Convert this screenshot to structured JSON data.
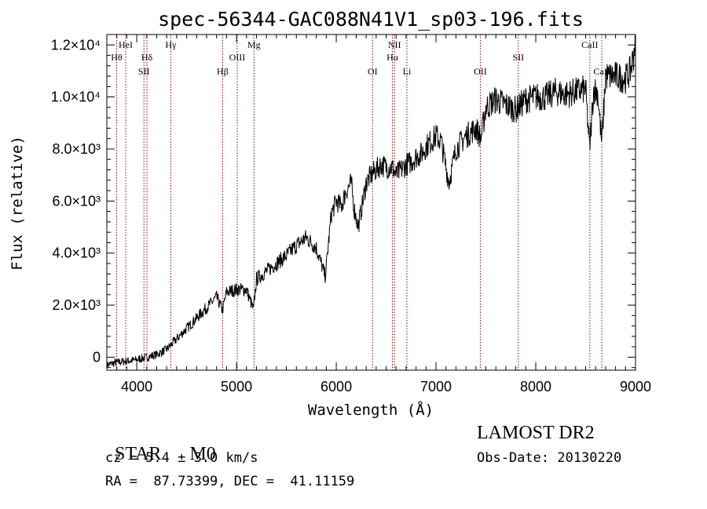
{
  "chart_data": {
    "type": "line",
    "title": "spec-56344-GAC088N41V1_sp03-196.fits",
    "xlabel": "Wavelength (Å)",
    "ylabel": "Flux (relative)",
    "xlim": [
      3700,
      9000
    ],
    "ylim": [
      -500,
      12400
    ],
    "x_ticks": [
      4000,
      5000,
      6000,
      7000,
      8000,
      9000
    ],
    "x_tick_labels": [
      "4000",
      "5000",
      "6000",
      "7000",
      "8000",
      "9000"
    ],
    "y_ticks": [
      0,
      2000,
      4000,
      6000,
      8000,
      10000,
      12000
    ],
    "y_tick_labels": [
      "0",
      "2.0×10³",
      "4.0×10³",
      "6.0×10³",
      "8.0×10³",
      "1.0×10⁴",
      "1.2×10⁴"
    ],
    "grid": false,
    "series": [
      {
        "x": [
          3700,
          3800,
          3900,
          4000,
          4100,
          4200,
          4300,
          4350,
          4400,
          4500,
          4600,
          4700,
          4800,
          4860,
          4900,
          5000,
          5100,
          5170,
          5200,
          5300,
          5400,
          5500,
          5600,
          5700,
          5800,
          5890,
          5950,
          6000,
          6050,
          6100,
          6150,
          6180,
          6220,
          6300,
          6350,
          6400,
          6450,
          6500,
          6560,
          6600,
          6650,
          6700,
          6750,
          6800,
          6850,
          6900,
          6950,
          7000,
          7050,
          7100,
          7130,
          7200,
          7300,
          7400,
          7450,
          7500,
          7600,
          7700,
          7800,
          7900,
          8000,
          8100,
          8200,
          8300,
          8400,
          8500,
          8540,
          8580,
          8620,
          8662,
          8700,
          8800,
          8900,
          8950,
          8980,
          9000
        ],
        "values": [
          -300,
          -200,
          -150,
          -100,
          0,
          100,
          300,
          500,
          700,
          1100,
          1500,
          1900,
          2300,
          1800,
          2500,
          2600,
          2600,
          1800,
          3000,
          3300,
          3600,
          3900,
          4300,
          4600,
          4200,
          3100,
          5500,
          6000,
          5800,
          6400,
          6700,
          5700,
          5000,
          6700,
          7000,
          7200,
          7400,
          7300,
          7300,
          7000,
          7200,
          7400,
          7500,
          7700,
          7800,
          8100,
          8300,
          8500,
          8300,
          7300,
          6700,
          8000,
          8500,
          8800,
          8400,
          9600,
          9900,
          9700,
          9500,
          9900,
          10000,
          10000,
          10200,
          10100,
          10200,
          10300,
          8000,
          10300,
          10200,
          8200,
          10800,
          10800,
          10700,
          11000,
          11600,
          12400
        ]
      }
    ],
    "line_markers": [
      {
        "x": 3889,
        "label": "HeI",
        "row": "top"
      },
      {
        "x": 3798,
        "label": "Hθ",
        "row": "upper"
      },
      {
        "x": 4072,
        "label": "SII",
        "row": "lower"
      },
      {
        "x": 4102,
        "label": "Hδ",
        "row": "upper"
      },
      {
        "x": 4341,
        "label": "Hγ",
        "row": "top"
      },
      {
        "x": 4861,
        "label": "Hβ",
        "row": "lower"
      },
      {
        "x": 5007,
        "label": "OIII",
        "row": "upper"
      },
      {
        "x": 5175,
        "label": "Mg",
        "row": "top"
      },
      {
        "x": 6364,
        "label": "OI",
        "row": "lower"
      },
      {
        "x": 6584,
        "label": "NII",
        "row": "top"
      },
      {
        "x": 6563,
        "label": "Hα",
        "row": "upper"
      },
      {
        "x": 6708,
        "label": "Li",
        "row": "lower"
      },
      {
        "x": 7444,
        "label": "OII",
        "row": "lower"
      },
      {
        "x": 7825,
        "label": "SII",
        "row": "upper"
      },
      {
        "x": 8542,
        "label": "CaII",
        "row": "top"
      },
      {
        "x": 8662,
        "label": "CaII",
        "row": "lower"
      }
    ],
    "marker_color": "#8b0000"
  },
  "info": {
    "class_label": "STAR",
    "subclass": "M0",
    "cz": "cz = 5.4 ± 3.0 km/s",
    "coords": "RA =  87.73399, DEC =  41.11159",
    "survey": "LAMOST DR2",
    "obs_date": "Obs-Date: 20130220"
  }
}
